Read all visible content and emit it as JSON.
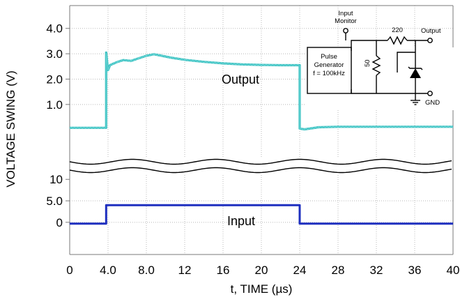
{
  "chart_data": {
    "type": "line",
    "xlabel": "t, TIME (µs)",
    "ylabel": "VOLTAGE SWING (V)",
    "x_ticks": [
      "0",
      "4.0",
      "8.0",
      "12",
      "16",
      "20",
      "24",
      "28",
      "32",
      "36",
      "40"
    ],
    "xlim": [
      0,
      40
    ],
    "grid": true,
    "panels": [
      {
        "name": "output",
        "y_ticks": [
          "1.0",
          "2.0",
          "3.0",
          "4.0"
        ],
        "ylim": [
          -0.05,
          4.9
        ],
        "series": [
          {
            "label": "Output",
            "color": "#38c0c0",
            "x": [
              0,
              3.8,
              3.8,
              4.0,
              4.2,
              4.5,
              5.0,
              5.6,
              6.4,
              7.2,
              8.0,
              8.8,
              9.6,
              10.5,
              12,
              14,
              16,
              18,
              20,
              22,
              23.6,
              24.0,
              24.0,
              24.5,
              26,
              28,
              32,
              36,
              40
            ],
            "y": [
              0.08,
              0.08,
              3.05,
              2.35,
              2.55,
              2.6,
              2.68,
              2.75,
              2.72,
              2.82,
              2.92,
              2.98,
              2.92,
              2.85,
              2.76,
              2.68,
              2.62,
              2.58,
              2.56,
              2.55,
              2.55,
              2.55,
              0.05,
              0.02,
              0.1,
              0.12,
              0.12,
              0.12,
              0.12
            ]
          }
        ]
      },
      {
        "name": "input",
        "y_ticks": [
          "0",
          "5.0",
          "10"
        ],
        "ylim": [
          -7.5,
          11.5
        ],
        "series": [
          {
            "label": "Input",
            "color": "#1e2fbf",
            "x": [
              0,
              3.8,
              3.8,
              24.0,
              24.0,
              40
            ],
            "y": [
              -0.3,
              -0.3,
              4.0,
              4.0,
              -0.3,
              -0.3
            ]
          }
        ]
      }
    ]
  },
  "schematic": {
    "input_monitor": "Input Monitor",
    "input_monitor_line1": "Input",
    "input_monitor_line2": "Monitor",
    "pulse_generator_line1": "Pulse",
    "pulse_generator_line2": "Generator",
    "pulse_generator_line3": "f = 100kHz",
    "resistor_series": "220",
    "resistor_shunt": "50",
    "output_label": "Output",
    "ground_label": "GND"
  }
}
